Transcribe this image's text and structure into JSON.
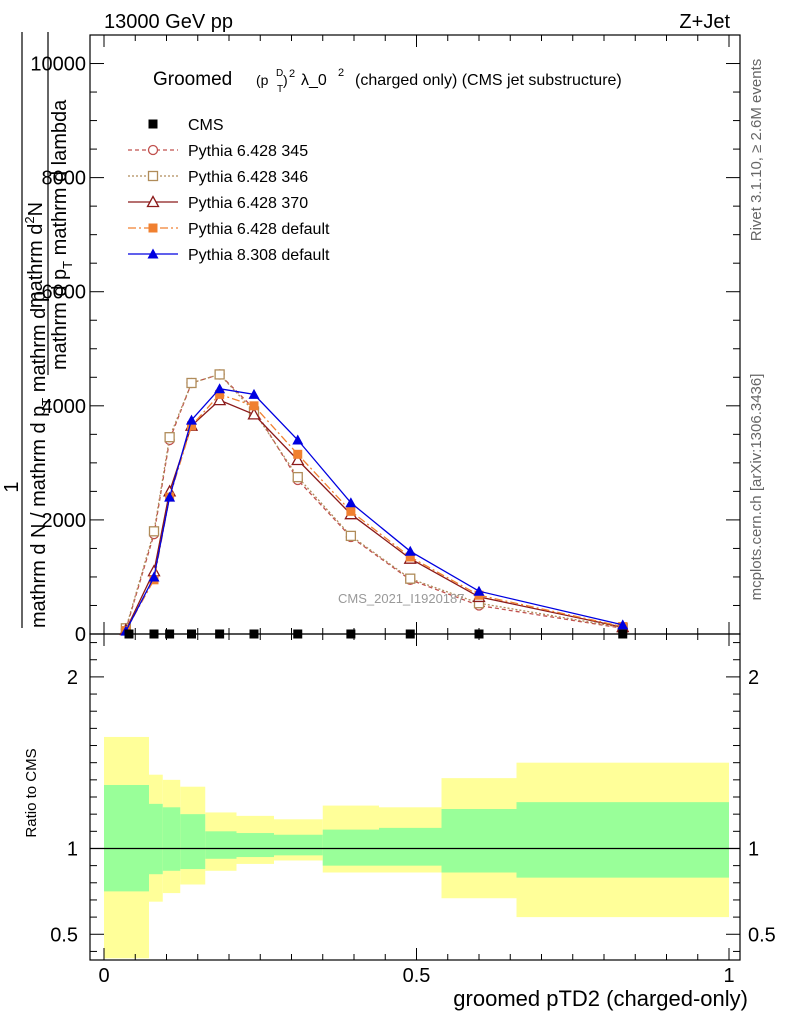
{
  "header": {
    "left": "13000 GeV pp",
    "right": "Z+Jet"
  },
  "side": {
    "right_top": "Rivet 3.1.10, ≥ 2.6M events",
    "right_bottom": "mcplots.cern.ch [arXiv:1306.3436]"
  },
  "chart_data": {
    "type": "line",
    "title": {
      "prefix": "Groomed",
      "mathpart": "(p",
      "sub_T": "T",
      "sup_D": "D",
      "close": ")",
      "sup_2": "2",
      "lambda": "λ_0",
      "lambda_sup": "2",
      "suffix": "(charged only) (CMS jet substructure)"
    },
    "ylabel": {
      "one": "1",
      "frac1_num": "mathrm d",
      "frac1_sup": "2",
      "frac1_tail": "N",
      "frac1_den": "mathrm d p",
      "frac1_den_sub": "T",
      "frac1_den_tail": " mathrm d lambda",
      "frac2_num": "mathrm d N",
      "frac2_den": "mathrm d p",
      "frac2_den_sub": "T",
      "frac2_den_tail": " mathrm d p"
    },
    "xlabel": "groomed pTD2 (charged-only)",
    "ratio_ylabel": "Ratio to CMS",
    "watermark": "CMS_2021_I1920187",
    "xlim": [
      0,
      1
    ],
    "ylim": [
      0,
      10500
    ],
    "ratio_ylim": [
      0.35,
      2.25
    ],
    "xticks": [
      "0",
      "0.5",
      "1"
    ],
    "yticks": [
      "0",
      "2000",
      "4000",
      "6000",
      "8000",
      "10000"
    ],
    "ratio_yticks": [
      "0.5",
      "1",
      "2"
    ],
    "ratio_yticks_right": [
      "0.5",
      "1",
      "2"
    ],
    "legend": [
      {
        "name": "CMS",
        "color": "#000000",
        "marker": "square-filled",
        "dash": ""
      },
      {
        "name": "Pythia 6.428 345",
        "color": "#c0504d",
        "marker": "circle-open",
        "dash": "4,3"
      },
      {
        "name": "Pythia 6.428 346",
        "color": "#b08c5a",
        "marker": "square-open",
        "dash": "2,2"
      },
      {
        "name": "Pythia 6.428 370",
        "color": "#8b1a1a",
        "marker": "triangle-open",
        "dash": ""
      },
      {
        "name": "Pythia 6.428 default",
        "color": "#f08030",
        "marker": "square-filled",
        "dash": "8,3,2,3"
      },
      {
        "name": "Pythia 8.308 default",
        "color": "#0000e0",
        "marker": "triangle-filled",
        "dash": ""
      }
    ],
    "cms_x": [
      0.04,
      0.08,
      0.105,
      0.14,
      0.185,
      0.24,
      0.31,
      0.395,
      0.49,
      0.6,
      0.83
    ],
    "cms_y": [
      0,
      0,
      0,
      0,
      0,
      0,
      0,
      0,
      0,
      0,
      0
    ],
    "series": [
      {
        "name": "Pythia 6.428 345",
        "x": [
          0.035,
          0.08,
          0.105,
          0.14,
          0.185,
          0.24,
          0.31,
          0.395,
          0.49,
          0.6,
          0.83
        ],
        "values": [
          80,
          1750,
          3400,
          4400,
          4550,
          3950,
          2700,
          1700,
          950,
          500,
          100
        ]
      },
      {
        "name": "Pythia 6.428 346",
        "x": [
          0.035,
          0.08,
          0.105,
          0.14,
          0.185,
          0.24,
          0.31,
          0.395,
          0.49,
          0.6,
          0.83
        ],
        "values": [
          100,
          1800,
          3450,
          4400,
          4550,
          3900,
          2750,
          1720,
          970,
          540,
          110
        ]
      },
      {
        "name": "Pythia 6.428 370",
        "x": [
          0.035,
          0.08,
          0.105,
          0.14,
          0.185,
          0.24,
          0.31,
          0.395,
          0.49,
          0.6,
          0.83
        ],
        "values": [
          70,
          1100,
          2500,
          3650,
          4100,
          3850,
          3050,
          2100,
          1320,
          650,
          120
        ]
      },
      {
        "name": "Pythia 6.428 default",
        "x": [
          0.035,
          0.08,
          0.105,
          0.14,
          0.185,
          0.24,
          0.31,
          0.395,
          0.49,
          0.6,
          0.83
        ],
        "values": [
          60,
          950,
          2400,
          3650,
          4200,
          4000,
          3150,
          2150,
          1350,
          680,
          130
        ]
      },
      {
        "name": "Pythia 8.308 default",
        "x": [
          0.035,
          0.08,
          0.105,
          0.14,
          0.185,
          0.24,
          0.31,
          0.395,
          0.49,
          0.6,
          0.83
        ],
        "values": [
          50,
          1000,
          2400,
          3750,
          4300,
          4200,
          3400,
          2300,
          1450,
          750,
          160
        ]
      }
    ],
    "band_edges": [
      0,
      0.072,
      0.094,
      0.122,
      0.162,
      0.212,
      0.272,
      0.35,
      0.44,
      0.54,
      0.66,
      1.0
    ],
    "band_outer": [
      [
        0.36,
        1.65
      ],
      [
        0.69,
        1.43
      ],
      [
        0.74,
        1.4
      ],
      [
        0.79,
        1.36
      ],
      [
        0.87,
        1.21
      ],
      [
        0.91,
        1.19
      ],
      [
        0.93,
        1.17
      ],
      [
        0.86,
        1.25
      ],
      [
        0.86,
        1.24
      ],
      [
        0.71,
        1.41
      ],
      [
        0.6,
        1.5
      ]
    ],
    "band_inner": [
      [
        0.75,
        1.37
      ],
      [
        0.85,
        1.26
      ],
      [
        0.87,
        1.24
      ],
      [
        0.88,
        1.2
      ],
      [
        0.94,
        1.1
      ],
      [
        0.95,
        1.09
      ],
      [
        0.96,
        1.08
      ],
      [
        0.9,
        1.11
      ],
      [
        0.9,
        1.12
      ],
      [
        0.86,
        1.23
      ],
      [
        0.83,
        1.27
      ]
    ],
    "colors": {
      "band_outer": "#ffff99",
      "band_inner": "#99ff99"
    }
  }
}
